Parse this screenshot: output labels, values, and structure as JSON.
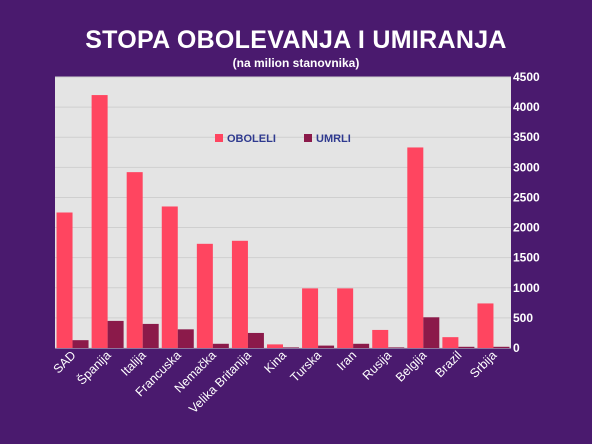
{
  "chart_data": {
    "type": "bar",
    "title": "STOPA OBOLEVANJA I UMIRANJA",
    "subtitle": "(na milion stanovnika)",
    "categories": [
      "SAD",
      "Španija",
      "Italija",
      "Francuska",
      "Nemačka",
      "Velika Britanija",
      "Kina",
      "Turska",
      "Iran",
      "Rusija",
      "Belgija",
      "Brazil",
      "Srbija"
    ],
    "series": [
      {
        "name": "OBOLELI",
        "color": "#ff4560",
        "values": [
          2250,
          4200,
          2920,
          2350,
          1730,
          1780,
          60,
          990,
          990,
          300,
          3330,
          180,
          740
        ]
      },
      {
        "name": "UMRLI",
        "color": "#8b1a4a",
        "values": [
          130,
          450,
          400,
          310,
          70,
          250,
          10,
          40,
          70,
          10,
          510,
          20,
          20
        ]
      }
    ],
    "ylim": [
      0,
      4500
    ],
    "yticks": [
      0,
      500,
      1000,
      1500,
      2000,
      2500,
      3000,
      3500,
      4000,
      4500
    ],
    "y_axis_side": "right",
    "legend_position": "top-center",
    "grid": true
  }
}
